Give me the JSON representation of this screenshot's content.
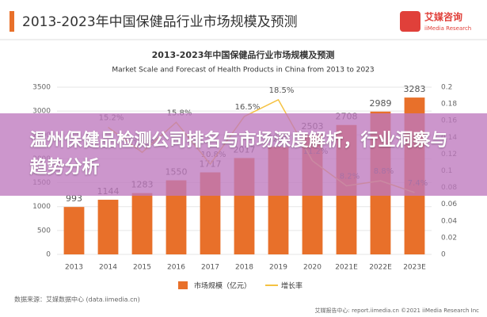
{
  "header": {
    "title": "2013-2023年中国保健品行业市场规模及预测",
    "logo_name": "艾媒咨询",
    "logo_sub": "iiMedia Research"
  },
  "chart_data": {
    "type": "bar",
    "title": "2013-2023年中国保健品行业市场规模及预测",
    "subtitle": "Market Scale and Forecast of Health Products in China from 2013 to 2023",
    "categories": [
      "2013",
      "2014",
      "2015",
      "2016",
      "2017",
      "2018",
      "2019",
      "2020",
      "2021E",
      "2022E",
      "2023E"
    ],
    "series": [
      {
        "name": "市场规模（亿元）",
        "color": "#e8702a",
        "type": "bar",
        "values": [
          993,
          1144,
          1283,
          1550,
          1717,
          2017,
          2250,
          2503,
          2708,
          2989,
          3283
        ]
      },
      {
        "name": "增长率",
        "color": "#f5c242",
        "type": "line",
        "axis": "y2",
        "values": [
          null,
          0.152,
          0.122,
          0.158,
          0.108,
          0.165,
          0.185,
          0.112,
          0.082,
          0.088,
          0.074
        ],
        "value_labels": [
          null,
          "15.2%",
          "12.2%",
          "15.8%",
          "10.8%",
          "16.5%",
          "18.5%",
          "11.2%",
          "8.2%",
          "8.8%",
          "7.4%"
        ]
      }
    ],
    "ylim": [
      0,
      3500
    ],
    "yticks": [
      0,
      500,
      1000,
      1500,
      2000,
      2500,
      3000,
      3500
    ],
    "y2lim": [
      0,
      0.2
    ],
    "y2ticks": [
      0,
      0.02,
      0.04,
      0.06,
      0.08,
      0.1,
      0.12,
      0.14,
      0.16,
      0.18,
      0.2
    ],
    "legend": "bottom",
    "source": "数据来源：艾媒数据中心 (data.iimedia.cn)"
  },
  "footer": "艾媒报告中心: report.iimedia.cn  ©2021  iiMedia Research Inc",
  "banner": {
    "title": "温州保健品检测公司排名与市场深度解析，行业洞察与趋势分析"
  }
}
